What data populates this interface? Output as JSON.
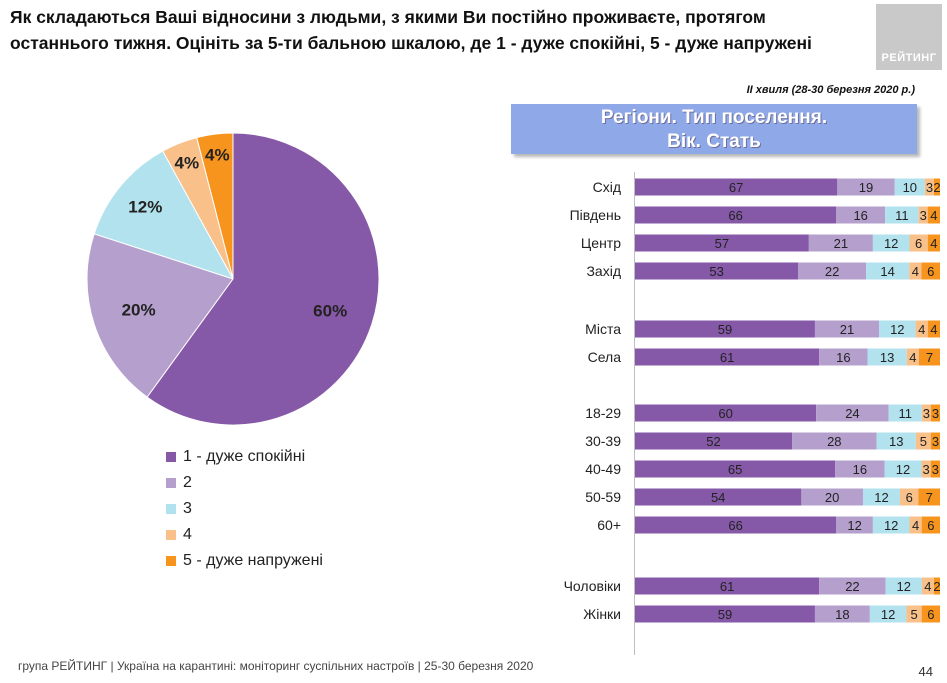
{
  "question": "Як складаються Ваші відносини з людьми, з якими Ви постійно проживаєте, протягом останнього тижня. Оцініть за 5-ти бальною шкалою, де 1 - дуже спокійні, 5 - дуже напружені",
  "logo_text": "РЕЙТИНГ",
  "wave_note": "ІІ хвиля (28-30 березня 2020 р.)",
  "banner": {
    "line1": "Регіони. Тип поселення.",
    "line2": "Вік. Стать"
  },
  "footer": "група РЕЙТИНГ  |  Україна на карантині: моніторинг суспільних настроїв  |  25-30 березня 2020",
  "page_number": "44",
  "colors": [
    "#8659a8",
    "#b5a0cd",
    "#b2e2ee",
    "#f9c08a",
    "#f7941e"
  ],
  "chart_data": [
    {
      "type": "pie",
      "categories": [
        "1 - дуже спокійні",
        "2",
        "3",
        "4",
        "5 - дуже напружені"
      ],
      "values": [
        60,
        20,
        12,
        4,
        4
      ],
      "labels": [
        "60%",
        "20%",
        "12%",
        "4%",
        "4%"
      ]
    },
    {
      "type": "bar",
      "orientation": "horizontal",
      "stacked": true,
      "xlim": [
        0,
        100
      ],
      "groups": [
        {
          "rows": [
            {
              "label": "Схід",
              "values": [
                67,
                19,
                10,
                3,
                2
              ]
            },
            {
              "label": "Південь",
              "values": [
                66,
                16,
                11,
                3,
                4
              ]
            },
            {
              "label": "Центр",
              "values": [
                57,
                21,
                12,
                6,
                4
              ]
            },
            {
              "label": "Захід",
              "values": [
                53,
                22,
                14,
                4,
                6
              ]
            }
          ]
        },
        {
          "rows": [
            {
              "label": "Міста",
              "values": [
                59,
                21,
                12,
                4,
                4
              ]
            },
            {
              "label": "Села",
              "values": [
                61,
                16,
                13,
                4,
                7
              ]
            }
          ]
        },
        {
          "rows": [
            {
              "label": "18-29",
              "values": [
                60,
                24,
                11,
                3,
                3
              ]
            },
            {
              "label": "30-39",
              "values": [
                52,
                28,
                13,
                5,
                3
              ]
            },
            {
              "label": "40-49",
              "values": [
                65,
                16,
                12,
                3,
                3
              ]
            },
            {
              "label": "50-59",
              "values": [
                54,
                20,
                12,
                6,
                7
              ]
            },
            {
              "label": "60+",
              "values": [
                66,
                12,
                12,
                4,
                6
              ]
            }
          ]
        },
        {
          "rows": [
            {
              "label": "Чоловіки",
              "values": [
                61,
                22,
                12,
                4,
                2
              ]
            },
            {
              "label": "Жінки",
              "values": [
                59,
                18,
                12,
                5,
                6
              ]
            }
          ]
        }
      ]
    }
  ]
}
